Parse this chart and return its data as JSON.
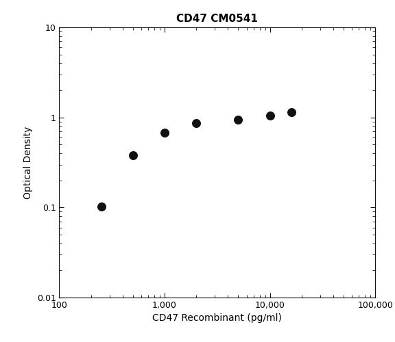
{
  "title": "CD47 CM0541",
  "xlabel": "CD47 Recombinant (pg/ml)",
  "ylabel": "Optical Density",
  "x_values": [
    250,
    500,
    1000,
    2000,
    5000,
    10000,
    16000
  ],
  "y_values": [
    0.102,
    0.38,
    0.68,
    0.87,
    0.95,
    1.05,
    1.15
  ],
  "xlim": [
    100,
    100000
  ],
  "ylim": [
    0.01,
    10
  ],
  "marker": "o",
  "marker_size": 70,
  "marker_color": "#111111",
  "background_color": "#ffffff",
  "title_fontsize": 11,
  "title_fontweight": "bold",
  "label_fontsize": 10,
  "tick_fontsize": 9,
  "x_ticks": [
    100,
    1000,
    10000,
    100000
  ],
  "x_tick_labels": [
    "100",
    "1,000",
    "10,000",
    "100,000"
  ],
  "y_ticks": [
    0.01,
    0.1,
    1,
    10
  ],
  "y_tick_labels": [
    "0.01",
    "0.1",
    "1",
    "10"
  ],
  "spine_color": "#111111",
  "tick_color": "#111111"
}
